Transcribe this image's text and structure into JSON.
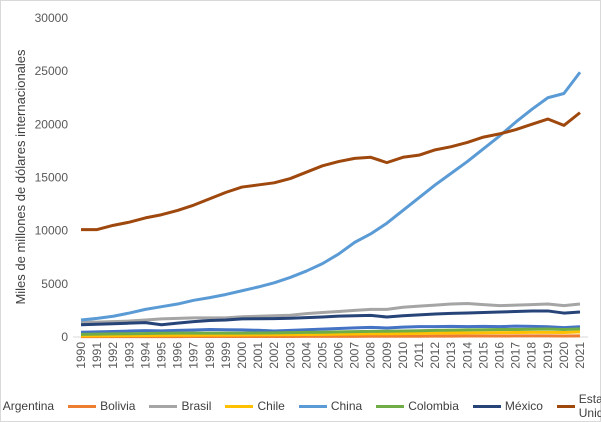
{
  "chart_data": {
    "type": "line",
    "title": "",
    "xlabel": "",
    "ylabel": "Miles de millones de dólares internacionales",
    "ylim": [
      0,
      30000
    ],
    "yticks": [
      0,
      5000,
      10000,
      15000,
      20000,
      25000,
      30000
    ],
    "grid": false,
    "legend": "bottom",
    "x": [
      1990,
      1991,
      1992,
      1993,
      1994,
      1995,
      1996,
      1997,
      1998,
      1999,
      2000,
      2001,
      2002,
      2003,
      2004,
      2005,
      2006,
      2007,
      2008,
      2009,
      2010,
      2011,
      2012,
      2013,
      2014,
      2015,
      2016,
      2017,
      2018,
      2019,
      2020,
      2021
    ],
    "series": [
      {
        "name": "Argentina",
        "color": "#4472C4",
        "values": [
          450,
          480,
          520,
          560,
          600,
          580,
          620,
          660,
          700,
          680,
          670,
          630,
          560,
          620,
          680,
          740,
          800,
          860,
          900,
          850,
          930,
          980,
          980,
          1000,
          980,
          1000,
          980,
          1020,
          1000,
          960,
          880,
          960
        ]
      },
      {
        "name": "Bolivia",
        "color": "#ED7D31",
        "values": [
          30,
          32,
          33,
          35,
          36,
          38,
          40,
          42,
          44,
          45,
          46,
          48,
          49,
          51,
          53,
          56,
          59,
          62,
          66,
          68,
          71,
          75,
          80,
          85,
          89,
          93,
          97,
          101,
          105,
          108,
          99,
          105
        ]
      },
      {
        "name": "Brasil",
        "color": "#A5A5A5",
        "values": [
          1400,
          1400,
          1450,
          1500,
          1600,
          1700,
          1750,
          1800,
          1800,
          1800,
          1900,
          1950,
          2000,
          2050,
          2200,
          2300,
          2400,
          2500,
          2600,
          2600,
          2800,
          2900,
          3000,
          3100,
          3150,
          3050,
          2950,
          3000,
          3050,
          3100,
          2950,
          3100
        ]
      },
      {
        "name": "Chile",
        "color": "#FFC000",
        "values": [
          100,
          110,
          120,
          130,
          140,
          150,
          160,
          170,
          180,
          180,
          190,
          200,
          210,
          220,
          240,
          250,
          270,
          280,
          300,
          300,
          320,
          340,
          360,
          380,
          390,
          400,
          410,
          420,
          430,
          440,
          420,
          480
        ]
      },
      {
        "name": "China",
        "color": "#5B9BD5",
        "values": [
          1600,
          1750,
          1950,
          2250,
          2600,
          2850,
          3100,
          3450,
          3700,
          4000,
          4350,
          4700,
          5100,
          5600,
          6200,
          6900,
          7800,
          8900,
          9700,
          10700,
          11900,
          13100,
          14300,
          15400,
          16500,
          17700,
          18900,
          20200,
          21400,
          22500,
          22900,
          24900
        ]
      },
      {
        "name": "Colombia",
        "color": "#70AD47",
        "values": [
          250,
          270,
          290,
          310,
          330,
          350,
          360,
          370,
          370,
          360,
          370,
          380,
          390,
          410,
          430,
          450,
          480,
          510,
          530,
          540,
          560,
          590,
          620,
          650,
          670,
          680,
          700,
          710,
          730,
          750,
          700,
          760
        ]
      },
      {
        "name": "México",
        "color": "#264478",
        "values": [
          1150,
          1200,
          1250,
          1300,
          1350,
          1150,
          1300,
          1450,
          1550,
          1600,
          1700,
          1720,
          1730,
          1760,
          1820,
          1880,
          1960,
          2000,
          2030,
          1880,
          2000,
          2080,
          2160,
          2220,
          2260,
          2300,
          2350,
          2400,
          2440,
          2450,
          2250,
          2350
        ]
      },
      {
        "name": "Estados Unidos",
        "color": "#9E480E",
        "values": [
          10100,
          10100,
          10500,
          10800,
          11200,
          11500,
          11900,
          12400,
          13000,
          13600,
          14100,
          14300,
          14500,
          14900,
          15500,
          16100,
          16500,
          16800,
          16900,
          16400,
          16900,
          17100,
          17600,
          17900,
          18300,
          18800,
          19100,
          19500,
          20000,
          20500,
          19900,
          21100
        ]
      }
    ]
  }
}
